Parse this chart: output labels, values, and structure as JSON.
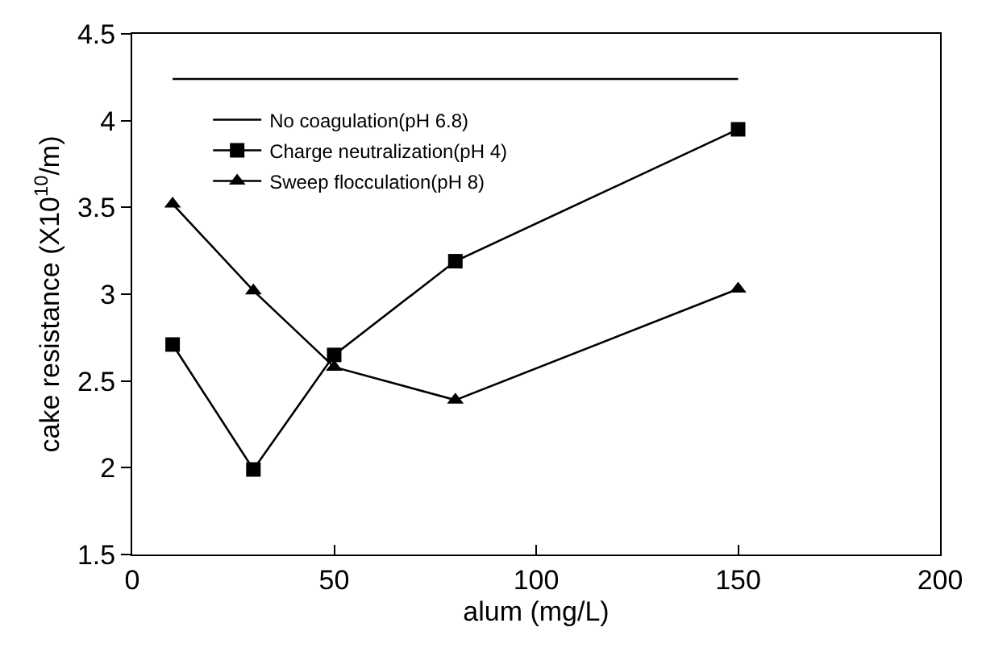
{
  "chart_data": {
    "type": "line",
    "xlabel": "alum (mg/L)",
    "ylabel": "cake resistance (X10$^{10}$/m)",
    "xlim": [
      0,
      200
    ],
    "xticks": [
      0,
      50,
      100,
      150,
      200
    ],
    "ylim": [
      1.5,
      4.5
    ],
    "yticks": [
      1.5,
      2,
      2.5,
      3,
      3.5,
      4,
      4.5
    ],
    "legend": "top left",
    "series": [
      {
        "name": "No coagulation(pH 6.8)",
        "color": "#000000",
        "marker": "none",
        "x": [
          10,
          150
        ],
        "values": [
          4.24,
          4.24
        ]
      },
      {
        "name": "Charge neutralization(pH 4)",
        "color": "#000000",
        "marker": "square",
        "x": [
          10,
          30,
          50,
          80,
          150
        ],
        "values": [
          2.71,
          1.99,
          2.65,
          3.19,
          3.95
        ]
      },
      {
        "name": "Sweep flocculation(pH 8)",
        "color": "#000000",
        "marker": "triangle",
        "x": [
          10,
          30,
          50,
          80,
          150
        ],
        "values": [
          3.52,
          3.02,
          2.58,
          2.39,
          3.03
        ]
      }
    ]
  }
}
